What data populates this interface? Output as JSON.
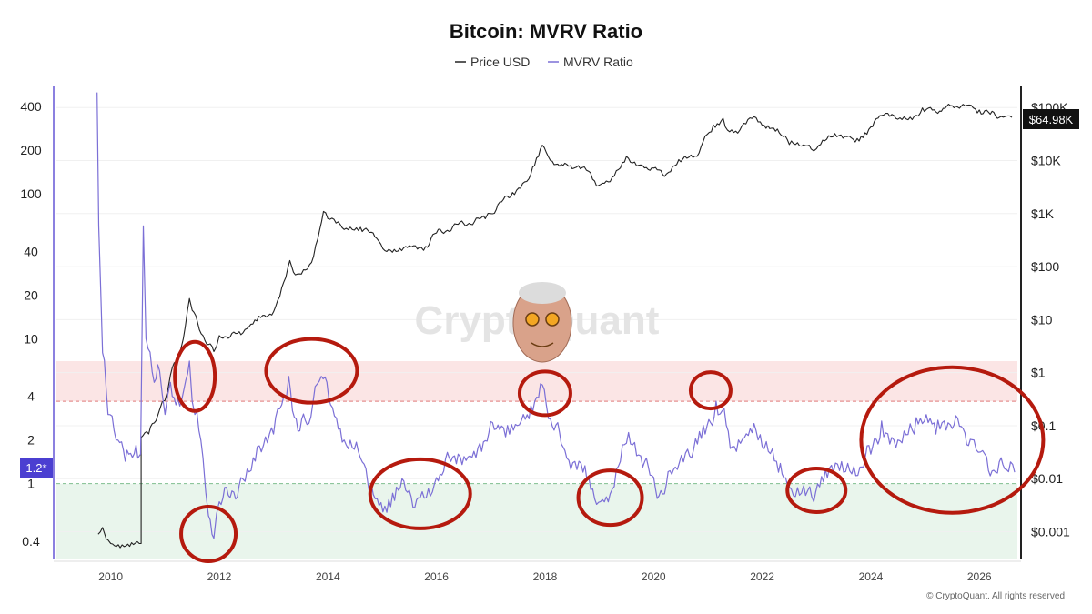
{
  "chart_data": {
    "type": "line",
    "title": "Bitcoin: MVRV Ratio",
    "legend": [
      {
        "name": "Price USD",
        "color": "#222222"
      },
      {
        "name": "MVRV Ratio",
        "color": "#7b6fd6"
      }
    ],
    "legend_position": "top-center",
    "x_ticks": [
      "2010",
      "2012",
      "2014",
      "2016",
      "2018",
      "2020",
      "2022",
      "2024",
      "2026"
    ],
    "x_range": [
      2009.0,
      2026.7
    ],
    "left_axis": {
      "scale": "log",
      "ticks": [
        0.4,
        1,
        2,
        4,
        10,
        20,
        40,
        100,
        200,
        400
      ],
      "tick_labels": [
        "0.4",
        "1",
        "2",
        "4",
        "10",
        "20",
        "40",
        "100",
        "200",
        "400"
      ],
      "range": [
        0.3,
        550
      ]
    },
    "right_axis": {
      "scale": "log",
      "ticks": [
        0.001,
        0.01,
        0.1,
        1,
        10,
        100,
        1000,
        10000,
        100000
      ],
      "tick_labels": [
        "$0.001",
        "$0.01",
        "$0.1",
        "$1",
        "$10",
        "$100",
        "$1K",
        "$10K",
        "$100K"
      ],
      "range": [
        0.0003,
        250000
      ]
    },
    "zones": {
      "overvalued": {
        "from": 3.7,
        "to": 7.0,
        "color": "#fbe5e5"
      },
      "undervalued": {
        "from": 0.3,
        "to": 1.0,
        "color": "#e9f5ec"
      }
    },
    "reference_lines": [
      3.7,
      1.0
    ],
    "current_price_label": "$64.98K",
    "current_mvrv_label": "1.2*",
    "series": [
      {
        "name": "Price USD",
        "axis": "right",
        "color": "#222222",
        "points": [
          [
            2009.77,
            0.0009
          ],
          [
            2009.85,
            0.0012
          ],
          [
            2009.95,
            0.0007
          ],
          [
            2010.0,
            0.0006
          ],
          [
            2010.56,
            0.0006
          ],
          [
            2010.56,
            0.06
          ],
          [
            2010.7,
            0.07
          ],
          [
            2010.9,
            0.2
          ],
          [
            2011.0,
            0.3
          ],
          [
            2011.1,
            0.9
          ],
          [
            2011.3,
            3
          ],
          [
            2011.45,
            25
          ],
          [
            2011.5,
            15
          ],
          [
            2011.7,
            5
          ],
          [
            2011.9,
            2.5
          ],
          [
            2012.0,
            5
          ],
          [
            2012.4,
            5.2
          ],
          [
            2012.8,
            12
          ],
          [
            2013.0,
            14
          ],
          [
            2013.3,
            130
          ],
          [
            2013.4,
            70
          ],
          [
            2013.7,
            120
          ],
          [
            2013.85,
            500
          ],
          [
            2013.92,
            1100
          ],
          [
            2014.0,
            800
          ],
          [
            2014.3,
            500
          ],
          [
            2014.6,
            550
          ],
          [
            2014.9,
            340
          ],
          [
            2015.05,
            200
          ],
          [
            2015.5,
            250
          ],
          [
            2015.8,
            240
          ],
          [
            2016.0,
            430
          ],
          [
            2016.5,
            650
          ],
          [
            2016.9,
            800
          ],
          [
            2017.0,
            1000
          ],
          [
            2017.4,
            2500
          ],
          [
            2017.7,
            4500
          ],
          [
            2017.95,
            19500
          ],
          [
            2018.1,
            10000
          ],
          [
            2018.3,
            8500
          ],
          [
            2018.5,
            7000
          ],
          [
            2018.8,
            6300
          ],
          [
            2018.95,
            3300
          ],
          [
            2019.2,
            4000
          ],
          [
            2019.5,
            12000
          ],
          [
            2019.8,
            8000
          ],
          [
            2020.0,
            7200
          ],
          [
            2020.2,
            5000
          ],
          [
            2020.5,
            9500
          ],
          [
            2020.8,
            12000
          ],
          [
            2020.95,
            29000
          ],
          [
            2021.1,
            47000
          ],
          [
            2021.28,
            63000
          ],
          [
            2021.4,
            35000
          ],
          [
            2021.55,
            33000
          ],
          [
            2021.85,
            67000
          ],
          [
            2022.0,
            46000
          ],
          [
            2022.35,
            30000
          ],
          [
            2022.5,
            20000
          ],
          [
            2022.8,
            19000
          ],
          [
            2022.9,
            16500
          ],
          [
            2023.0,
            16800
          ],
          [
            2023.3,
            28000
          ],
          [
            2023.6,
            29000
          ],
          [
            2023.75,
            26000
          ],
          [
            2024.0,
            43000
          ],
          [
            2024.2,
            71000
          ],
          [
            2024.5,
            60000
          ],
          [
            2024.8,
            68000
          ],
          [
            2024.95,
            98000
          ],
          [
            2025.1,
            100000
          ],
          [
            2025.3,
            85000
          ],
          [
            2025.5,
            108000
          ],
          [
            2025.7,
            115000
          ],
          [
            2025.85,
            110000
          ],
          [
            2026.0,
            90000
          ],
          [
            2026.2,
            75000
          ],
          [
            2026.4,
            68000
          ],
          [
            2026.6,
            64980
          ]
        ]
      },
      {
        "name": "MVRV Ratio",
        "axis": "left",
        "color": "#7b6fd6",
        "points": [
          [
            2009.75,
            500
          ],
          [
            2009.78,
            60
          ],
          [
            2009.85,
            8
          ],
          [
            2009.95,
            3.0
          ],
          [
            2010.1,
            2.0
          ],
          [
            2010.3,
            1.7
          ],
          [
            2010.5,
            1.5
          ],
          [
            2010.55,
            1.6
          ],
          [
            2010.6,
            60
          ],
          [
            2010.65,
            10
          ],
          [
            2010.8,
            5
          ],
          [
            2010.9,
            6
          ],
          [
            2011.0,
            3.0
          ],
          [
            2011.1,
            5
          ],
          [
            2011.2,
            3.5
          ],
          [
            2011.35,
            4.5
          ],
          [
            2011.45,
            7.0
          ],
          [
            2011.55,
            3.0
          ],
          [
            2011.7,
            1.5
          ],
          [
            2011.8,
            0.6
          ],
          [
            2011.9,
            0.42
          ],
          [
            2012.0,
            0.75
          ],
          [
            2012.2,
            0.8
          ],
          [
            2012.4,
            1.1
          ],
          [
            2012.7,
            1.8
          ],
          [
            2013.0,
            2.2
          ],
          [
            2013.15,
            3.5
          ],
          [
            2013.28,
            5.5
          ],
          [
            2013.45,
            2.3
          ],
          [
            2013.65,
            2.6
          ],
          [
            2013.88,
            5.5
          ],
          [
            2014.05,
            3.5
          ],
          [
            2014.3,
            2.0
          ],
          [
            2014.6,
            1.5
          ],
          [
            2014.8,
            1.0
          ],
          [
            2015.05,
            0.7
          ],
          [
            2015.3,
            0.9
          ],
          [
            2015.7,
            0.8
          ],
          [
            2016.0,
            1.1
          ],
          [
            2016.4,
            1.6
          ],
          [
            2016.8,
            1.9
          ],
          [
            2017.2,
            2.5
          ],
          [
            2017.6,
            3.0
          ],
          [
            2017.95,
            4.8
          ],
          [
            2018.1,
            2.8
          ],
          [
            2018.4,
            1.5
          ],
          [
            2018.7,
            1.2
          ],
          [
            2018.95,
            0.72
          ],
          [
            2019.2,
            0.85
          ],
          [
            2019.5,
            1.9
          ],
          [
            2019.8,
            1.3
          ],
          [
            2020.2,
            0.85
          ],
          [
            2020.4,
            1.3
          ],
          [
            2020.7,
            1.5
          ],
          [
            2020.95,
            2.2
          ],
          [
            2021.15,
            3.7
          ],
          [
            2021.3,
            3.3
          ],
          [
            2021.45,
            1.8
          ],
          [
            2021.6,
            1.9
          ],
          [
            2021.85,
            2.6
          ],
          [
            2022.0,
            1.8
          ],
          [
            2022.3,
            1.2
          ],
          [
            2022.5,
            0.95
          ],
          [
            2022.8,
            0.83
          ],
          [
            2022.95,
            0.75
          ],
          [
            2023.2,
            1.1
          ],
          [
            2023.5,
            1.2
          ],
          [
            2023.8,
            1.3
          ],
          [
            2024.0,
            1.6
          ],
          [
            2024.2,
            2.7
          ],
          [
            2024.5,
            2.0
          ],
          [
            2024.8,
            2.2
          ],
          [
            2024.95,
            2.6
          ],
          [
            2025.2,
            2.2
          ],
          [
            2025.5,
            2.4
          ],
          [
            2025.7,
            2.4
          ],
          [
            2025.9,
            2.0
          ],
          [
            2026.1,
            1.6
          ],
          [
            2026.3,
            1.2
          ],
          [
            2026.5,
            1.25
          ],
          [
            2026.65,
            1.2
          ]
        ]
      }
    ],
    "watermark": "CryptoQuant",
    "copyright": "© CryptoQuant. All rights reserved"
  }
}
